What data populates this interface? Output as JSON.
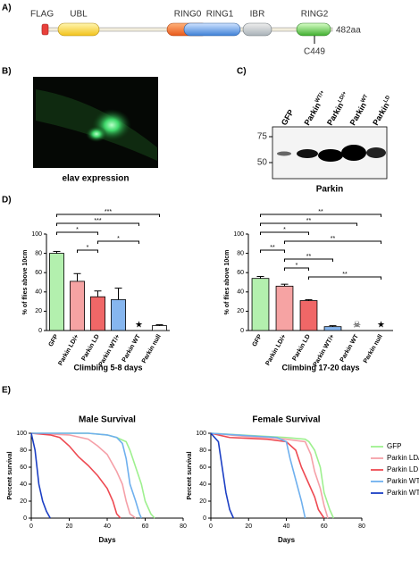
{
  "panel_labels": [
    "A)",
    "B)",
    "C)",
    "D)",
    "E)"
  ],
  "panel_a": {
    "domains": [
      "FLAG",
      "UBL",
      "RING0",
      "RING1",
      "IBR",
      "RING2"
    ],
    "length": "482aa",
    "site": "C449"
  },
  "panel_b": {
    "caption": "elav expression"
  },
  "panel_c": {
    "lanes": [
      {
        "name": "GFP"
      },
      {
        "name": "Parkin",
        "sup": "WT/+"
      },
      {
        "name": "Parkin",
        "sup": "LD/+"
      },
      {
        "name": "Parkin",
        "sup": "WT"
      },
      {
        "name": "Parkin",
        "sup": "LD"
      }
    ],
    "markers": [
      "75",
      "50"
    ],
    "caption": "Parkin"
  },
  "chart_data": [
    {
      "type": "bar",
      "title": "Climbing 5-8 days",
      "ylabel": "% of flies above 10cm",
      "categories": [
        "GFP",
        "Parkin LD/+",
        "Parkin LD",
        "Parkin WT/+",
        "Parkin WT",
        "Parkin null"
      ],
      "values": [
        80,
        51,
        35,
        32,
        null,
        5
      ],
      "errors": [
        2,
        8,
        6,
        12,
        null,
        1
      ],
      "colors": [
        "#b3f0ae",
        "#f6a3a3",
        "#f06767",
        "#86b6ef",
        null,
        "#ffffff"
      ],
      "symbols": [
        {
          "index": 4,
          "text": "★"
        }
      ],
      "ylim": [
        0,
        100
      ],
      "yticks": [
        0,
        20,
        40,
        60,
        80,
        100
      ],
      "significance": [
        {
          "from": 0,
          "to": 5,
          "label": "***"
        },
        {
          "from": 0,
          "to": 4,
          "label": "***"
        },
        {
          "from": 0,
          "to": 2,
          "label": "*"
        },
        {
          "from": 2,
          "to": 4,
          "label": "*"
        },
        {
          "from": 1,
          "to": 2,
          "label": "*"
        }
      ]
    },
    {
      "type": "bar",
      "title": "Climbing 17-20 days",
      "ylabel": "% of flies above 10cm",
      "categories": [
        "GFP",
        "Parkin LD/+",
        "Parkin LD",
        "Parkin WT/+",
        "Parkin WT",
        "Parkin null"
      ],
      "values": [
        54,
        46,
        31,
        4,
        null,
        null
      ],
      "errors": [
        2,
        2,
        1,
        1,
        null,
        null
      ],
      "colors": [
        "#b3f0ae",
        "#f6a3a3",
        "#f06767",
        "#86b6ef",
        null,
        null
      ],
      "symbols": [
        {
          "index": 4,
          "text": "☠"
        },
        {
          "index": 5,
          "text": "★"
        }
      ],
      "ylim": [
        0,
        100
      ],
      "yticks": [
        0,
        20,
        40,
        60,
        80,
        100
      ],
      "significance": [
        {
          "from": 0,
          "to": 5,
          "label": "**"
        },
        {
          "from": 0,
          "to": 4,
          "label": "**"
        },
        {
          "from": 0,
          "to": 2,
          "label": "*"
        },
        {
          "from": 1,
          "to": 5,
          "label": "**"
        },
        {
          "from": 0,
          "to": 1,
          "label": "**"
        },
        {
          "from": 1,
          "to": 3,
          "label": "**"
        },
        {
          "from": 1,
          "to": 2,
          "label": "*"
        },
        {
          "from": 2,
          "to": 5,
          "label": "**"
        }
      ]
    },
    {
      "type": "line",
      "title": "Male Survival",
      "xlabel": "Days",
      "ylabel": "Percent survival",
      "xlim": [
        0,
        80
      ],
      "xticks": [
        0,
        20,
        40,
        60,
        80
      ],
      "ylim": [
        0,
        100
      ],
      "yticks": [
        0,
        20,
        40,
        60,
        80,
        100
      ],
      "series": [
        {
          "color": "#9ef08f",
          "x": [
            0,
            30,
            40,
            45,
            50,
            52,
            55,
            58,
            60,
            63,
            65
          ],
          "values": [
            100,
            100,
            98,
            95,
            90,
            80,
            60,
            40,
            20,
            5,
            0
          ]
        },
        {
          "color": "#f5a0a8",
          "x": [
            0,
            20,
            30,
            35,
            40,
            45,
            48,
            50,
            52,
            55
          ],
          "values": [
            100,
            98,
            93,
            85,
            75,
            55,
            40,
            20,
            5,
            0
          ]
        },
        {
          "color": "#ee4a52",
          "x": [
            0,
            10,
            15,
            20,
            25,
            30,
            35,
            40,
            43,
            45,
            47
          ],
          "values": [
            100,
            98,
            95,
            85,
            72,
            62,
            50,
            35,
            20,
            5,
            0
          ]
        },
        {
          "color": "#6fb0ee",
          "x": [
            0,
            30,
            40,
            45,
            48,
            50,
            52,
            55,
            57,
            58
          ],
          "values": [
            100,
            100,
            98,
            95,
            88,
            70,
            40,
            20,
            5,
            0
          ]
        },
        {
          "color": "#1c3fc4",
          "x": [
            0,
            2,
            4,
            6,
            8,
            10
          ],
          "values": [
            100,
            80,
            40,
            20,
            8,
            0
          ]
        }
      ]
    },
    {
      "type": "line",
      "title": "Female Survival",
      "xlabel": "Days",
      "ylabel": "Percent survival",
      "legend": "right",
      "xlim": [
        0,
        80
      ],
      "xticks": [
        0,
        20,
        40,
        60,
        80
      ],
      "ylim": [
        0,
        100
      ],
      "yticks": [
        0,
        20,
        40,
        60,
        80,
        100
      ],
      "series": [
        {
          "name": "GFP",
          "color": "#9ef08f",
          "x": [
            0,
            40,
            50,
            52,
            55,
            58,
            60,
            63,
            65
          ],
          "values": [
            100,
            95,
            93,
            90,
            80,
            60,
            30,
            10,
            0
          ]
        },
        {
          "name": "Parkin LD/+",
          "color": "#f5a0a8",
          "x": [
            0,
            10,
            20,
            30,
            40,
            50,
            53,
            55,
            58,
            60,
            62
          ],
          "values": [
            100,
            98,
            96,
            95,
            93,
            90,
            75,
            55,
            35,
            15,
            0
          ]
        },
        {
          "name": "Parkin LD",
          "color": "#ee4a52",
          "x": [
            0,
            10,
            20,
            30,
            40,
            45,
            48,
            50,
            52,
            55,
            57,
            60
          ],
          "values": [
            100,
            95,
            94,
            93,
            90,
            80,
            60,
            50,
            40,
            25,
            10,
            0
          ]
        },
        {
          "name": "Parkin WT/+",
          "color": "#6fb0ee",
          "x": [
            0,
            20,
            35,
            40,
            42,
            45,
            48,
            50
          ],
          "values": [
            100,
            97,
            95,
            90,
            70,
            45,
            20,
            0
          ]
        },
        {
          "name": "Parkin WT",
          "color": "#1c3fc4",
          "x": [
            0,
            4,
            6,
            8,
            10,
            12
          ],
          "values": [
            100,
            90,
            60,
            30,
            10,
            0
          ]
        }
      ]
    }
  ]
}
